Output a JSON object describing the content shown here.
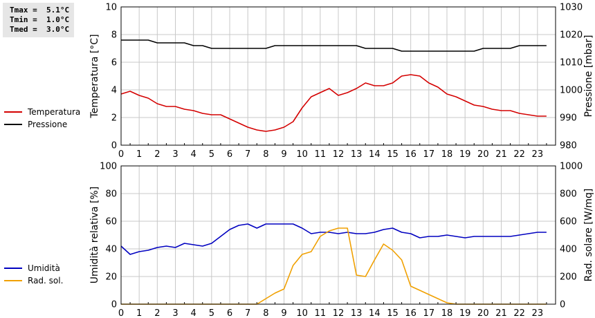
{
  "stats": {
    "tmax": "Tmax =  5.1°C",
    "tmin": "Tmin =  1.0°C",
    "tmed": "Tmed =  3.0°C"
  },
  "colors": {
    "temperatura": "#d40000",
    "pressione": "#000000",
    "umidita": "#0000c0",
    "radsol": "#f0a000"
  },
  "chart_data": [
    {
      "type": "line",
      "ylabel": "Temperatura [°C]",
      "y2label": "Pressione [mbar]",
      "xlim": [
        0,
        24
      ],
      "ylim": [
        0,
        10
      ],
      "y2lim": [
        980,
        1030
      ],
      "xticks": [
        "0",
        "1",
        "2",
        "3",
        "4",
        "5",
        "6",
        "7",
        "8",
        "9",
        "10",
        "11",
        "12",
        "13",
        "14",
        "15",
        "16",
        "17",
        "18",
        "19",
        "20",
        "21",
        "22",
        "23"
      ],
      "yticks": [
        "0",
        "2",
        "4",
        "6",
        "8",
        "10"
      ],
      "y2ticks": [
        "980",
        "990",
        "1000",
        "1010",
        "1020",
        "1030"
      ],
      "grid": true,
      "legend_position": "left",
      "series": [
        {
          "name": "Temperatura",
          "axis": "left",
          "x": [
            0,
            0.5,
            1,
            1.5,
            2,
            2.5,
            3,
            3.5,
            4,
            4.5,
            5,
            5.5,
            6,
            6.5,
            7,
            7.5,
            8,
            8.5,
            9,
            9.5,
            10,
            10.5,
            11,
            11.5,
            12,
            12.5,
            13,
            13.5,
            14,
            14.5,
            15,
            15.5,
            16,
            16.5,
            17,
            17.5,
            18,
            18.5,
            19,
            19.5,
            20,
            20.5,
            21,
            21.5,
            22,
            22.5,
            23,
            23.5
          ],
          "y": [
            3.7,
            3.9,
            3.6,
            3.4,
            3.0,
            2.8,
            2.8,
            2.6,
            2.5,
            2.3,
            2.2,
            2.2,
            1.9,
            1.6,
            1.3,
            1.1,
            1.0,
            1.1,
            1.3,
            1.7,
            2.7,
            3.5,
            3.8,
            4.1,
            3.6,
            3.8,
            4.1,
            4.5,
            4.3,
            4.3,
            4.5,
            5.0,
            5.1,
            5.0,
            4.5,
            4.2,
            3.7,
            3.5,
            3.2,
            2.9,
            2.8,
            2.6,
            2.5,
            2.5,
            2.3,
            2.2,
            2.1,
            2.1
          ]
        },
        {
          "name": "Pressione",
          "axis": "right",
          "x": [
            0,
            0.5,
            1,
            1.5,
            2,
            2.5,
            3,
            3.5,
            4,
            4.5,
            5,
            5.5,
            6,
            6.5,
            7,
            7.5,
            8,
            8.5,
            9,
            9.5,
            10,
            10.5,
            11,
            11.5,
            12,
            12.5,
            13,
            13.5,
            14,
            14.5,
            15,
            15.5,
            16,
            16.5,
            17,
            17.5,
            18,
            18.5,
            19,
            19.5,
            20,
            20.5,
            21,
            21.5,
            22,
            22.5,
            23,
            23.5
          ],
          "y": [
            1018,
            1018,
            1018,
            1018,
            1017,
            1017,
            1017,
            1017,
            1016,
            1016,
            1015,
            1015,
            1015,
            1015,
            1015,
            1015,
            1015,
            1016,
            1016,
            1016,
            1016,
            1016,
            1016,
            1016,
            1016,
            1016,
            1016,
            1015,
            1015,
            1015,
            1015,
            1014,
            1014,
            1014,
            1014,
            1014,
            1014,
            1014,
            1014,
            1014,
            1015,
            1015,
            1015,
            1015,
            1016,
            1016,
            1016,
            1016
          ]
        }
      ]
    },
    {
      "type": "line",
      "ylabel": "Umidità relativa [%]",
      "y2label": "Rad. solare [W/mq]",
      "xlim": [
        0,
        24
      ],
      "ylim": [
        0,
        100
      ],
      "y2lim": [
        0,
        1000
      ],
      "xticks": [
        "0",
        "1",
        "2",
        "3",
        "4",
        "5",
        "6",
        "7",
        "8",
        "9",
        "10",
        "11",
        "12",
        "13",
        "14",
        "15",
        "16",
        "17",
        "18",
        "19",
        "20",
        "21",
        "22",
        "23"
      ],
      "yticks": [
        "0",
        "20",
        "40",
        "60",
        "80",
        "100"
      ],
      "y2ticks": [
        "0",
        "200",
        "400",
        "600",
        "800",
        "1000"
      ],
      "grid": true,
      "legend_position": "left",
      "series": [
        {
          "name": "Umidità",
          "axis": "left",
          "x": [
            0,
            0.5,
            1,
            1.5,
            2,
            2.5,
            3,
            3.5,
            4,
            4.5,
            5,
            5.5,
            6,
            6.5,
            7,
            7.5,
            8,
            8.5,
            9,
            9.5,
            10,
            10.5,
            11,
            11.5,
            12,
            12.5,
            13,
            13.5,
            14,
            14.5,
            15,
            15.5,
            16,
            16.5,
            17,
            17.5,
            18,
            18.5,
            19,
            19.5,
            20,
            20.5,
            21,
            21.5,
            22,
            22.5,
            23,
            23.5
          ],
          "y": [
            42,
            36,
            38,
            39,
            41,
            42,
            41,
            44,
            43,
            42,
            44,
            49,
            54,
            57,
            58,
            55,
            58,
            58,
            58,
            58,
            55,
            51,
            52,
            52,
            51,
            52,
            51,
            51,
            52,
            54,
            55,
            52,
            51,
            48,
            49,
            49,
            50,
            49,
            48,
            49,
            49,
            49,
            49,
            49,
            50,
            51,
            52,
            52
          ]
        },
        {
          "name": "Rad. sol.",
          "axis": "right",
          "x": [
            0,
            0.5,
            1,
            1.5,
            2,
            2.5,
            3,
            3.5,
            4,
            4.5,
            5,
            5.5,
            6,
            6.5,
            7,
            7.5,
            8,
            8.5,
            9,
            9.5,
            10,
            10.5,
            11,
            11.5,
            12,
            12.5,
            13,
            13.5,
            14,
            14.5,
            15,
            15.5,
            16,
            16.5,
            17,
            17.5,
            18,
            18.5,
            19,
            19.5,
            20,
            20.5,
            21,
            21.5,
            22,
            22.5,
            23,
            23.5
          ],
          "y": [
            0,
            0,
            0,
            0,
            0,
            0,
            0,
            0,
            0,
            0,
            0,
            0,
            0,
            0,
            0,
            0,
            40,
            80,
            110,
            280,
            360,
            380,
            490,
            530,
            550,
            550,
            210,
            200,
            320,
            435,
            390,
            320,
            130,
            100,
            70,
            40,
            10,
            0,
            0,
            0,
            0,
            0,
            0,
            0,
            0,
            0,
            0,
            0
          ]
        }
      ]
    }
  ]
}
